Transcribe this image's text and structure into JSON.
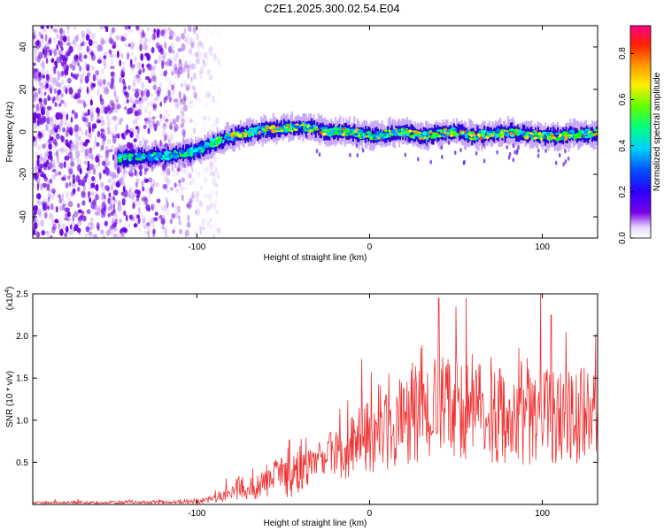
{
  "figure_title": "C2E1.2025.300.02.54.E04",
  "chart_data": [
    {
      "type": "heatmap",
      "xlabel": "Height of straight line (km)",
      "ylabel": "Frequency (Hz)",
      "xlim": [
        -195,
        132
      ],
      "ylim": [
        -50,
        50
      ],
      "x_ticks": [
        -100,
        0,
        100
      ],
      "y_ticks": [
        -40,
        -20,
        0,
        20,
        40
      ],
      "colorbar": {
        "label": "Normalized spectral amplitude",
        "range": [
          0.0,
          0.92
        ],
        "ticks": [
          0.0,
          0.2,
          0.4,
          0.6,
          0.8
        ],
        "tick_labels": [
          "0.0",
          "0.2",
          "0.4",
          "0.6",
          "0.8"
        ]
      },
      "noise_region_x": [
        -195,
        -95
      ],
      "ridge": {
        "x": [
          -145,
          -130,
          -115,
          -100,
          -90,
          -75,
          -60,
          -45,
          -35,
          -25,
          -10,
          0,
          10,
          20,
          30,
          40,
          50,
          60,
          70,
          80,
          90,
          100,
          110,
          120,
          132
        ],
        "freq": [
          -12,
          -12,
          -11,
          -9,
          -5,
          -1,
          1,
          2,
          2,
          0,
          0,
          -2,
          -1,
          0,
          -2,
          -1,
          0,
          -2,
          -1,
          0,
          -1,
          -2,
          -2,
          -1,
          -1
        ]
      }
    },
    {
      "type": "line",
      "xlabel": "Height of straight line (km)",
      "ylabel": "SNR (10 * v/v)",
      "y_multiplier_label": "(x10",
      "y_multiplier_exp": "4",
      "y_multiplier_close": ")",
      "xlim": [
        -195,
        132
      ],
      "ylim": [
        0,
        2.5
      ],
      "x_ticks": [
        -100,
        0,
        100
      ],
      "y_ticks": [
        0.5,
        1.0,
        1.5,
        2.0,
        2.5
      ],
      "color": "#ee3333",
      "envelope": {
        "x": [
          -195,
          -110,
          -95,
          -85,
          -75,
          -65,
          -55,
          -45,
          -35,
          -25,
          -15,
          0,
          15,
          30,
          40,
          60,
          80,
          100,
          120,
          132
        ],
        "mean": [
          0.02,
          0.03,
          0.05,
          0.1,
          0.2,
          0.25,
          0.3,
          0.35,
          0.42,
          0.55,
          0.65,
          0.8,
          0.95,
          1.1,
          1.15,
          1.1,
          1.05,
          1.05,
          1.05,
          1.05
        ]
      },
      "peaks": [
        {
          "x": 40,
          "y": 2.45
        },
        {
          "x": 99,
          "y": 2.5
        },
        {
          "x": 105,
          "y": 2.25
        }
      ]
    }
  ]
}
